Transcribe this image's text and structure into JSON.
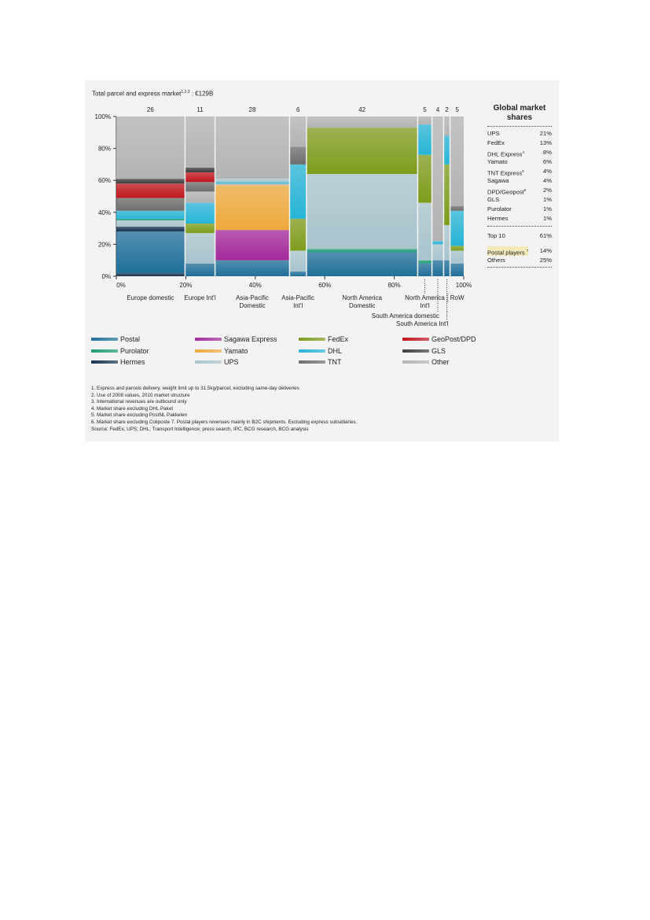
{
  "title": {
    "text": "Total parcel and express market",
    "sup": "1,2,3",
    "value": " : €129B"
  },
  "shares": {
    "title": "Global market shares",
    "rows": [
      {
        "name": "UPS",
        "sup": "",
        "value": "21%"
      },
      {
        "name": "FedEx",
        "sup": "",
        "value": "13%"
      },
      {
        "name": "DHL Express",
        "sup": "4",
        "value": "8%"
      },
      {
        "name": "Yamato",
        "sup": "",
        "value": "6%"
      },
      {
        "name": "TNT Express",
        "sup": "5",
        "value": "4%"
      },
      {
        "name": "Sagawa",
        "sup": "",
        "value": "4%"
      },
      {
        "name": "DPD/Geopost",
        "sup": "6",
        "value": "2%"
      },
      {
        "name": "GLS",
        "sup": "",
        "value": "1%"
      },
      {
        "name": "Purolator",
        "sup": "",
        "value": "1%"
      },
      {
        "name": "Hermes",
        "sup": "",
        "value": "1%"
      }
    ],
    "top10": {
      "name": "Top 10",
      "value": "61%"
    },
    "postal": {
      "name": "Postal players ",
      "sup": "7",
      "value": "14%"
    },
    "others": {
      "name": "Others",
      "value": "25%"
    }
  },
  "legend": [
    {
      "name": "Postal",
      "color": "#1f6f9a"
    },
    {
      "name": "Sagawa Express",
      "color": "#a3299a"
    },
    {
      "name": "FedEx",
      "color": "#7f9c1c"
    },
    {
      "name": "GeoPost/DPD",
      "color": "#c0161c"
    },
    {
      "name": "Purolator",
      "color": "#1c9c74"
    },
    {
      "name": "Yamato",
      "color": "#eea93a"
    },
    {
      "name": "DHL",
      "color": "#27b4d6"
    },
    {
      "name": "GLS",
      "color": "#3c3c3c"
    },
    {
      "name": "Hermes",
      "color": "#16334f"
    },
    {
      "name": "UPS",
      "color": "#a8c4cd"
    },
    {
      "name": "TNT",
      "color": "#6d6d6d"
    },
    {
      "name": "Other",
      "color": "#b3b3b3"
    }
  ],
  "notes": [
    "1. Express and parcels delivery, weight limit up to 31.5kg/parcel, excluding same-day deliveries",
    "2. Use of 2008 values, 2010 market structure",
    "3. International revenues are outbound only",
    "4. Market share excluding DHL Paket",
    "5. Market share excluding PostNL Pakketen",
    "6. Market share excluding Coliposte 7. Postal players revenues mainly in B2C shipments. Excluding express subsidiaries.",
    "Source: FedEx; UPS; DHL; Transport Intelligence; press search, IPC, BCG research, BCG analysis"
  ],
  "chart_data": {
    "type": "marimekko",
    "x_ticks": [
      "0%",
      "20%",
      "40%",
      "60%",
      "80%",
      "100%"
    ],
    "y_ticks": [
      "0%",
      "20%",
      "40%",
      "60%",
      "80%",
      "100%"
    ],
    "segments": [
      {
        "name": "Europe domestic",
        "width": 26,
        "label": "Europe domestic",
        "label_pos": "below",
        "stack": [
          [
            "Hermes",
            2
          ],
          [
            "Postal",
            26
          ],
          [
            "Hermes",
            3
          ],
          [
            "UPS",
            4
          ],
          [
            "Purolator",
            1
          ],
          [
            "DHL",
            5
          ],
          [
            "TNT",
            8
          ],
          [
            "GeoPost/DPD",
            9
          ],
          [
            "GLS",
            3
          ],
          [
            "Other",
            39
          ]
        ]
      },
      {
        "name": "Europe Int'l",
        "width": 11,
        "label": "Europe Int'l",
        "label_pos": "below",
        "stack": [
          [
            "Postal",
            8
          ],
          [
            "UPS",
            19
          ],
          [
            "FedEx",
            6
          ],
          [
            "DHL",
            13
          ],
          [
            "Other",
            7
          ],
          [
            "TNT",
            6
          ],
          [
            "GeoPost/DPD",
            6
          ],
          [
            "GLS",
            3
          ],
          [
            "Other",
            32
          ]
        ]
      },
      {
        "name": "Asia-Pacific Domestic",
        "width": 28,
        "label": "Asia-Pacific Domestic",
        "label_pos": "below",
        "stack": [
          [
            "Postal",
            10
          ],
          [
            "Sagawa Express",
            19
          ],
          [
            "Yamato",
            28
          ],
          [
            "Other",
            1
          ],
          [
            "DHL",
            1
          ],
          [
            "UPS",
            2
          ],
          [
            "Other",
            39
          ]
        ]
      },
      {
        "name": "Asia-Pacific Int'l",
        "width": 6,
        "label": "Asia-Pacific Int'l",
        "label_pos": "below",
        "stack": [
          [
            "Postal",
            3
          ],
          [
            "UPS",
            13
          ],
          [
            "FedEx",
            20
          ],
          [
            "DHL",
            34
          ],
          [
            "TNT",
            11
          ],
          [
            "Other",
            19
          ]
        ]
      },
      {
        "name": "North America Domestic",
        "width": 42,
        "label": "North America Domestic",
        "label_pos": "below",
        "stack": [
          [
            "Postal",
            15
          ],
          [
            "Purolator",
            2
          ],
          [
            "UPS",
            47
          ],
          [
            "FedEx",
            29
          ],
          [
            "Other",
            7
          ]
        ]
      },
      {
        "name": "North America Int'l",
        "width": 5,
        "label": "North America Int'l",
        "label_pos": "below",
        "stack": [
          [
            "Postal",
            8
          ],
          [
            "Purolator",
            2
          ],
          [
            "UPS",
            36
          ],
          [
            "FedEx",
            30
          ],
          [
            "DHL",
            19
          ],
          [
            "Other",
            5
          ]
        ]
      },
      {
        "name": "South America domestic",
        "width": 4,
        "label": "South America domestic",
        "label_pos": "leader",
        "stack": [
          [
            "Postal",
            10
          ],
          [
            "UPS",
            10
          ],
          [
            "DHL",
            2
          ],
          [
            "Other",
            78
          ]
        ]
      },
      {
        "name": "South America Int'l",
        "width": 2,
        "label": "South America Int'l",
        "label_pos": "leader",
        "stack": [
          [
            "Postal",
            10
          ],
          [
            "UPS",
            22
          ],
          [
            "FedEx",
            38
          ],
          [
            "DHL",
            18
          ],
          [
            "Other",
            12
          ]
        ]
      },
      {
        "name": "RoW",
        "width": 5,
        "label": "RoW",
        "label_pos": "below",
        "stack": [
          [
            "Postal",
            8
          ],
          [
            "UPS",
            8
          ],
          [
            "FedEx",
            3
          ],
          [
            "DHL",
            22
          ],
          [
            "TNT",
            3
          ],
          [
            "Other",
            56
          ]
        ]
      }
    ]
  }
}
